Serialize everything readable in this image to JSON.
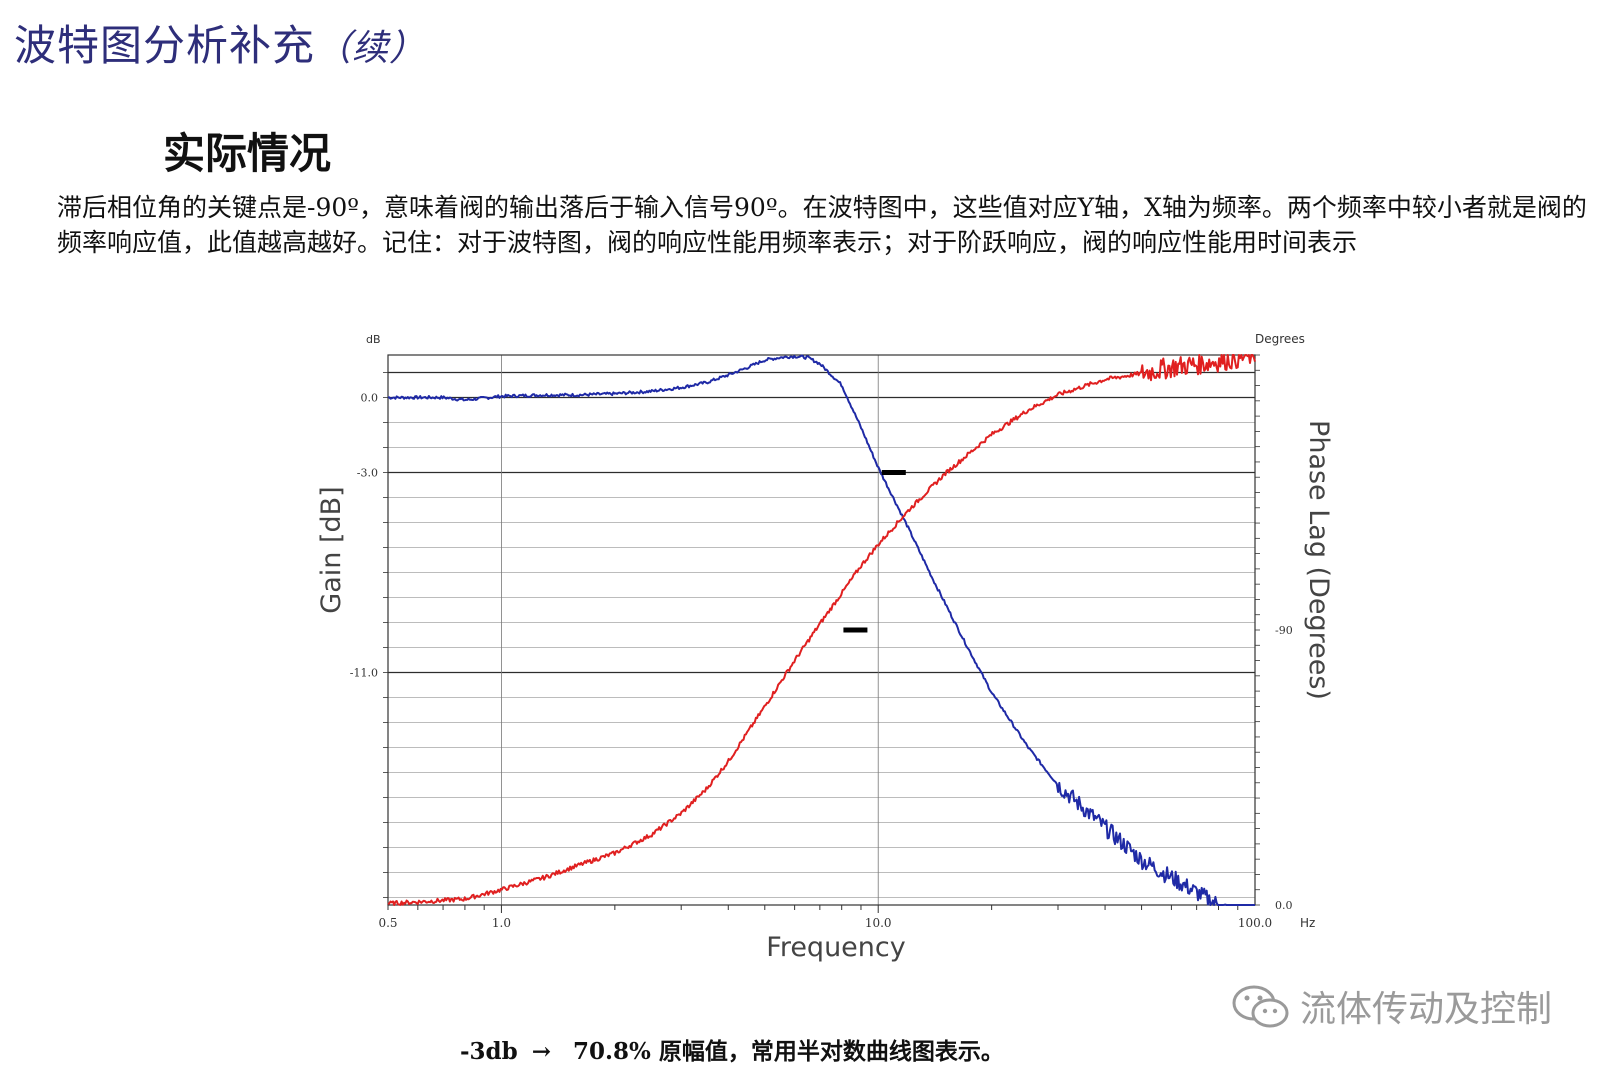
{
  "slide": {
    "title": "波特图分析补充",
    "title_suffix": "（续）",
    "section_title": "实际情况",
    "paragraph": "滞后相位角的关键点是-90º，意味着阀的输出落后于输入信号90º。在波特图中，这些值对应Y轴，X轴为频率。两个频率中较小者就是阀的频率响应值，此值越高越好。记住：对于波特图，阀的响应性能用频率表示；对于阶跃响应，阀的响应性能用时间表示",
    "caption_left": "-3db",
    "caption_arrow": "→",
    "caption_right": "70.8% 原幅值，常用半对数曲线图表示。",
    "watermark": "流体传动及控制",
    "watermark_icon": "wechat-bubble-icon"
  },
  "chart_data": {
    "type": "line",
    "xlabel": "Frequency",
    "ylabel_left": "Gain [dB]",
    "ylabel_right": "Phase Lag (Degrees)",
    "left_unit": "dB",
    "right_unit": "Degrees",
    "x_unit": "Hz",
    "x_scale": "log",
    "xlim": [
      0.5,
      100
    ],
    "x_tick_labels": [
      "0.5",
      "1.0",
      "10.0",
      "100.0"
    ],
    "x_tick_values": [
      0.5,
      1,
      10,
      100
    ],
    "left_ylim": [
      -20.3,
      1.7
    ],
    "left_tick_labels": [
      "0.0",
      "-3.0",
      "-11.0"
    ],
    "left_tick_values": [
      0,
      -3,
      -11
    ],
    "right_ylim": [
      0,
      180
    ],
    "right_tick_labels": [
      "-90",
      "0.0"
    ],
    "right_tick_values": [
      90,
      0
    ],
    "grid": true,
    "colors": {
      "gain": "#1f2aa6",
      "phase": "#e02020",
      "grid": "#222222",
      "marker": "#000000"
    },
    "series": [
      {
        "axis": "left",
        "color": "#1f2aa6",
        "x": [
          0.5,
          0.6,
          0.7,
          0.8,
          1.0,
          1.3,
          1.6,
          2.0,
          2.5,
          3.0,
          3.5,
          4.0,
          4.5,
          5.0,
          5.5,
          6.0,
          6.5,
          7.0,
          8.0,
          9.0,
          10.0,
          12.0,
          14.0,
          17.0,
          20.0,
          25.0,
          30.0,
          40.0,
          50.0,
          60.0,
          70.0,
          80.0,
          90.0,
          100.0
        ],
        "values": [
          0.0,
          0.0,
          0.0,
          -0.1,
          0.05,
          0.1,
          0.1,
          0.15,
          0.25,
          0.4,
          0.6,
          0.9,
          1.2,
          1.5,
          1.6,
          1.65,
          1.6,
          1.35,
          0.5,
          -1.2,
          -2.8,
          -5.2,
          -7.3,
          -9.8,
          -11.8,
          -14.0,
          -15.5,
          -17.2,
          -18.5,
          -19.2,
          -19.8,
          -20.3,
          -20.8,
          -21.2
        ]
      },
      {
        "axis": "right",
        "color": "#e02020",
        "x": [
          0.5,
          0.6,
          0.7,
          0.8,
          1.0,
          1.3,
          1.6,
          2.0,
          2.5,
          3.0,
          3.5,
          4.0,
          5.0,
          6.0,
          7.0,
          8.0,
          9.0,
          10.0,
          12.0,
          15.0,
          20.0,
          25.0,
          30.0,
          40.0,
          50.0,
          60.0,
          70.0,
          80.0,
          90.0,
          100.0
        ],
        "values": [
          0.5,
          1.0,
          1.5,
          2.0,
          5.0,
          9.0,
          13.0,
          17.0,
          23.0,
          30.0,
          38.0,
          47.0,
          65.0,
          80.0,
          92.0,
          102.0,
          111.0,
          118.0,
          129.0,
          141.0,
          154.0,
          162.0,
          167.0,
          172.0,
          174.0,
          176.0,
          177.0,
          178.0,
          179.0,
          180.0
        ]
      }
    ],
    "markers": [
      {
        "axis": "left",
        "x": 11.0,
        "y": -3.0
      },
      {
        "axis": "right",
        "x": 8.7,
        "y": 90
      }
    ]
  }
}
